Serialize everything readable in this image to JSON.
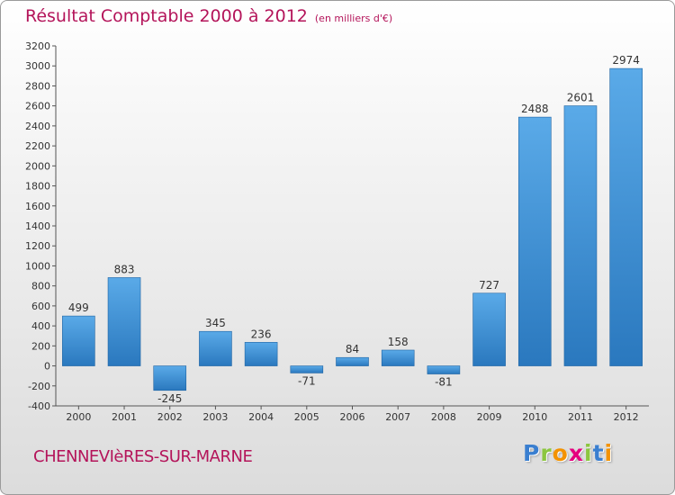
{
  "title": {
    "main": "Résultat Comptable 2000 à 2012",
    "unit": "(en milliers d'€)"
  },
  "city": "CHENNEVIèRES-SUR-MARNE",
  "logo": {
    "text": "Proxiti",
    "letters": [
      {
        "char": "P",
        "color": "#3a7fd0"
      },
      {
        "char": "r",
        "color": "#8cc63f"
      },
      {
        "char": "o",
        "color": "#f39200"
      },
      {
        "char": "x",
        "color": "#e5007e"
      },
      {
        "char": "i",
        "color": "#8cc63f"
      },
      {
        "char": "t",
        "color": "#3a7fd0"
      },
      {
        "char": "i",
        "color": "#f39200"
      }
    ]
  },
  "colors": {
    "title": "#b4145a",
    "bar_light": "#5aaae8",
    "bar_dark": "#2a78be",
    "axis_text": "#333333"
  },
  "chart_data": {
    "type": "bar",
    "categories": [
      "2000",
      "2001",
      "2002",
      "2003",
      "2004",
      "2005",
      "2006",
      "2007",
      "2008",
      "2009",
      "2010",
      "2011",
      "2012"
    ],
    "values": [
      499,
      883,
      -245,
      345,
      236,
      -71,
      84,
      158,
      -81,
      727,
      2488,
      2601,
      2974
    ],
    "value_labels": [
      "499",
      "883",
      "-245",
      "345",
      "236",
      "-71",
      "84",
      "158",
      "-81",
      "727",
      "2488",
      "2601",
      "2974"
    ],
    "ylim": [
      -400,
      3200
    ],
    "yticks": [
      -400,
      -200,
      0,
      200,
      400,
      600,
      800,
      1000,
      1200,
      1400,
      1600,
      1800,
      2000,
      2200,
      2400,
      2600,
      2800,
      3000,
      3200
    ],
    "grid": false,
    "legend": "none"
  }
}
